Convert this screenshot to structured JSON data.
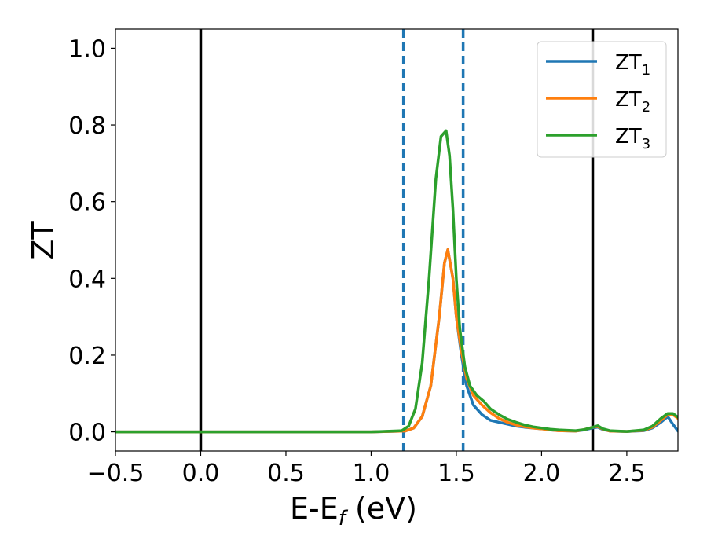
{
  "chart_data": {
    "type": "line",
    "xlabel": {
      "main": "E-E",
      "sub": "f",
      "unit": " (eV)"
    },
    "ylabel": "ZT",
    "xlim": [
      -0.5,
      2.8
    ],
    "ylim": [
      -0.05,
      1.05
    ],
    "x_ticks": [
      -0.5,
      0.0,
      0.5,
      1.0,
      1.5,
      2.0,
      2.5
    ],
    "x_tick_labels": [
      "−0.5",
      "0.0",
      "0.5",
      "1.0",
      "1.5",
      "2.0",
      "2.5"
    ],
    "y_ticks": [
      0.0,
      0.2,
      0.4,
      0.6,
      0.8,
      1.0
    ],
    "y_tick_labels": [
      "0.0",
      "0.2",
      "0.4",
      "0.6",
      "0.8",
      "1.0"
    ],
    "grid": false,
    "legend_position": "top-right",
    "vlines": [
      {
        "x": 0.0,
        "style": "solid",
        "color": "#000000"
      },
      {
        "x": 2.3,
        "style": "solid",
        "color": "#000000"
      },
      {
        "x": 1.19,
        "style": "dashed",
        "color": "#1f77b4"
      },
      {
        "x": 1.54,
        "style": "dashed",
        "color": "#1f77b4"
      }
    ],
    "series": [
      {
        "name": "ZT",
        "sub": "1",
        "color": "#1f77b4",
        "x": [
          -0.5,
          1.0,
          1.2,
          1.25,
          1.3,
          1.35,
          1.4,
          1.43,
          1.45,
          1.48,
          1.5,
          1.53,
          1.56,
          1.6,
          1.65,
          1.7,
          1.75,
          1.8,
          1.85,
          1.9,
          1.95,
          2.0,
          2.05,
          2.1,
          2.2,
          2.25,
          2.3,
          2.33,
          2.36,
          2.4,
          2.5,
          2.6,
          2.65,
          2.7,
          2.74,
          2.77,
          2.8
        ],
        "y": [
          0.0,
          0.0,
          0.002,
          0.01,
          0.04,
          0.12,
          0.3,
          0.44,
          0.475,
          0.4,
          0.3,
          0.2,
          0.12,
          0.07,
          0.045,
          0.03,
          0.025,
          0.02,
          0.015,
          0.012,
          0.01,
          0.008,
          0.005,
          0.003,
          0.002,
          0.005,
          0.01,
          0.012,
          0.006,
          0.002,
          0.001,
          0.003,
          0.01,
          0.025,
          0.04,
          0.02,
          0.002
        ]
      },
      {
        "name": "ZT",
        "sub": "2",
        "color": "#ff7f0e",
        "x": [
          -0.5,
          1.0,
          1.2,
          1.25,
          1.3,
          1.35,
          1.4,
          1.43,
          1.45,
          1.48,
          1.5,
          1.53,
          1.56,
          1.6,
          1.65,
          1.7,
          1.75,
          1.8,
          1.85,
          1.9,
          1.95,
          2.0,
          2.05,
          2.1,
          2.2,
          2.25,
          2.3,
          2.33,
          2.36,
          2.4,
          2.5,
          2.6,
          2.65,
          2.7,
          2.74,
          2.77,
          2.8
        ],
        "y": [
          0.0,
          0.0,
          0.002,
          0.01,
          0.04,
          0.12,
          0.3,
          0.44,
          0.475,
          0.4,
          0.3,
          0.21,
          0.14,
          0.095,
          0.07,
          0.05,
          0.035,
          0.025,
          0.018,
          0.013,
          0.01,
          0.008,
          0.005,
          0.003,
          0.002,
          0.006,
          0.012,
          0.014,
          0.007,
          0.002,
          0.001,
          0.004,
          0.012,
          0.03,
          0.045,
          0.045,
          0.035
        ]
      },
      {
        "name": "ZT",
        "sub": "3",
        "color": "#2ca02c",
        "x": [
          -0.5,
          1.0,
          1.18,
          1.22,
          1.26,
          1.3,
          1.34,
          1.38,
          1.41,
          1.44,
          1.46,
          1.48,
          1.5,
          1.52,
          1.55,
          1.58,
          1.62,
          1.66,
          1.7,
          1.75,
          1.8,
          1.85,
          1.9,
          1.95,
          2.0,
          2.05,
          2.1,
          2.2,
          2.25,
          2.3,
          2.33,
          2.36,
          2.4,
          2.5,
          2.6,
          2.65,
          2.7,
          2.74,
          2.77,
          2.8
        ],
        "y": [
          0.0,
          0.0,
          0.003,
          0.015,
          0.06,
          0.18,
          0.4,
          0.66,
          0.77,
          0.785,
          0.72,
          0.58,
          0.4,
          0.27,
          0.17,
          0.12,
          0.095,
          0.08,
          0.06,
          0.045,
          0.033,
          0.025,
          0.018,
          0.013,
          0.01,
          0.007,
          0.005,
          0.003,
          0.006,
          0.012,
          0.016,
          0.008,
          0.003,
          0.001,
          0.005,
          0.015,
          0.035,
          0.048,
          0.048,
          0.038
        ]
      }
    ]
  }
}
